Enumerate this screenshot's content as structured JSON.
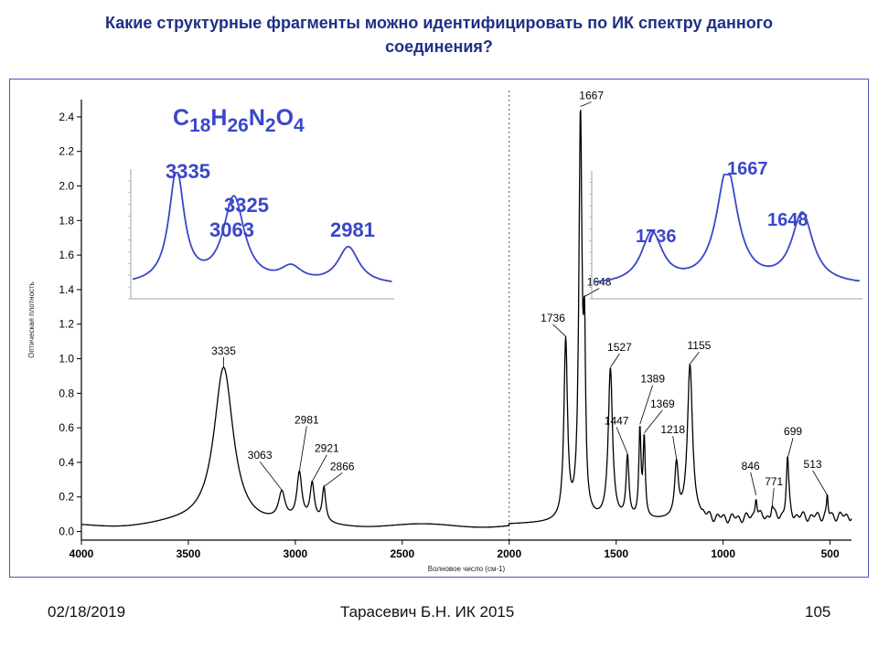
{
  "slide": {
    "title_line1": "Какие структурные фрагменты можно идентифицировать по ИК спектру данного",
    "title_line2": "соединения?"
  },
  "footer": {
    "date": "02/18/2019",
    "author": "Тарасевич Б.Н.  ИК 2015",
    "page": "105"
  },
  "colors": {
    "title": "#1f2f86",
    "spectrum": "#000000",
    "inset_line": "#3a47c8",
    "inset_label": "#3a47c8",
    "frame": "#4b55b8"
  },
  "chart_data": [
    {
      "type": "line",
      "title": "",
      "ylabel": "Оптическая плотность",
      "xlabel": "Волновое число (см-1)",
      "xlim": [
        4000,
        400
      ],
      "ylim": [
        -0.05,
        2.5
      ],
      "x_reversed": true,
      "x_ticks": [
        4000,
        3500,
        3000,
        2500,
        2000,
        1500,
        1000,
        500
      ],
      "x_tick_labels": [
        "4000",
        "3500",
        "3000",
        "2500",
        "2000",
        "1500",
        "1000",
        "500"
      ],
      "y_ticks": [
        0.0,
        0.2,
        0.4,
        0.6,
        0.8,
        1.0,
        1.2,
        1.4,
        1.6,
        1.8,
        2.0,
        2.2,
        2.4
      ],
      "y_tick_labels": [
        "0.0",
        "0.2",
        "0.4",
        "0.6",
        "0.8",
        "1.0",
        "1.2",
        "1.4",
        "1.6",
        "1.8",
        "2.0",
        "2.2",
        "2.4"
      ],
      "grid": false,
      "formula": {
        "base": [
          "C",
          "H",
          "N",
          "O"
        ],
        "sub": [
          "18",
          "26",
          "2",
          "4"
        ]
      },
      "peaks": [
        {
          "x": 3335,
          "y": 0.95,
          "label": "3335"
        },
        {
          "x": 3063,
          "y": 0.24,
          "label": "3063"
        },
        {
          "x": 2981,
          "y": 0.35,
          "label": "2981"
        },
        {
          "x": 2921,
          "y": 0.29,
          "label": "2921"
        },
        {
          "x": 2866,
          "y": 0.26,
          "label": "2866"
        },
        {
          "x": 1736,
          "y": 1.13,
          "label": "1736"
        },
        {
          "x": 1667,
          "y": 2.46,
          "label": "1667"
        },
        {
          "x": 1648,
          "y": 1.36,
          "label": "1648"
        },
        {
          "x": 1527,
          "y": 0.95,
          "label": "1527"
        },
        {
          "x": 1447,
          "y": 0.45,
          "label": "1447"
        },
        {
          "x": 1389,
          "y": 0.62,
          "label": "1389"
        },
        {
          "x": 1369,
          "y": 0.57,
          "label": "1369"
        },
        {
          "x": 1218,
          "y": 0.42,
          "label": "1218"
        },
        {
          "x": 1155,
          "y": 0.97,
          "label": "1155"
        },
        {
          "x": 846,
          "y": 0.21,
          "label": "846"
        },
        {
          "x": 771,
          "y": 0.15,
          "label": "771"
        },
        {
          "x": 699,
          "y": 0.42,
          "label": "699"
        },
        {
          "x": 513,
          "y": 0.21,
          "label": "513"
        }
      ]
    },
    {
      "type": "line",
      "name": "inset-high-wavenumber",
      "region": "3500-2800",
      "peaks": [
        {
          "label": "3335",
          "h": 0.92
        },
        {
          "label": "3325",
          "h": 0.7
        },
        {
          "label": "3063",
          "h": 0.12
        },
        {
          "label": "2981",
          "h": 0.3
        }
      ]
    },
    {
      "type": "line",
      "name": "inset-carbonyl",
      "region": "1800-1600",
      "peaks": [
        {
          "label": "1736",
          "h": 0.42
        },
        {
          "label": "1667",
          "h": 0.95
        },
        {
          "label": "1648",
          "h": 0.58
        }
      ]
    }
  ]
}
